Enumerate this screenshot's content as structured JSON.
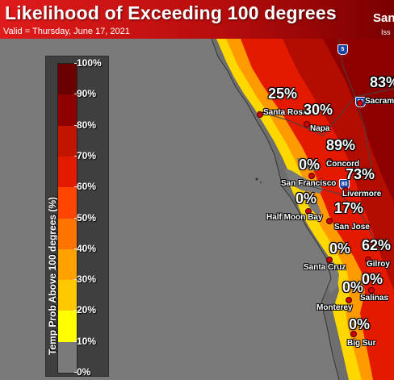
{
  "header": {
    "title": "Likelihood of Exceeding 100 degrees",
    "subtitle": "Valid = Thursday, June 17, 2021",
    "corner_top": "San",
    "corner_bottom": "Iss"
  },
  "legend": {
    "axis_title": "Temp Prob Above 100 degrees (%)",
    "ticks": [
      "100%",
      "90%",
      "80%",
      "70%",
      "60%",
      "50%",
      "40%",
      "30%",
      "20%",
      "10%",
      "0%"
    ],
    "bands": [
      {
        "range": "90-100%",
        "color": "#6b0000"
      },
      {
        "range": "80-90%",
        "color": "#8e0000"
      },
      {
        "range": "70-80%",
        "color": "#c21500"
      },
      {
        "range": "60-70%",
        "color": "#e41a00"
      },
      {
        "range": "50-60%",
        "color": "#ff4500"
      },
      {
        "range": "40-50%",
        "color": "#ff7400"
      },
      {
        "range": "30-40%",
        "color": "#ffa200"
      },
      {
        "range": "20-30%",
        "color": "#ffc800"
      },
      {
        "range": "10-20%",
        "color": "#ffff00"
      },
      {
        "range": "0-10%",
        "color": "#7a7a7a"
      }
    ]
  },
  "locations": [
    {
      "id": "santa-rosa",
      "city": "Santa Rosa",
      "pct": "25%"
    },
    {
      "id": "napa",
      "city": "Napa",
      "pct": "30%"
    },
    {
      "id": "sacramento",
      "city": "Sacram",
      "pct": "83%"
    },
    {
      "id": "concord",
      "city": "Concord",
      "pct": "89%"
    },
    {
      "id": "san-francisco",
      "city": "San Francisco",
      "pct": "0%"
    },
    {
      "id": "livermore",
      "city": "Livermore",
      "pct": "73%"
    },
    {
      "id": "half-moon-bay",
      "city": "Half Moon Bay",
      "pct": "0%"
    },
    {
      "id": "san-jose",
      "city": "San Jose",
      "pct": "17%"
    },
    {
      "id": "santa-cruz",
      "city": "Santa Cruz",
      "pct": "0%"
    },
    {
      "id": "gilroy",
      "city": "Gilroy",
      "pct": "62%"
    },
    {
      "id": "salinas",
      "city": "Salinas",
      "pct": "0%"
    },
    {
      "id": "monterey",
      "city": "Monterey",
      "pct": "0%"
    },
    {
      "id": "big-sur",
      "city": "Big Sur",
      "pct": "0%"
    }
  ],
  "highways": [
    "5",
    "80",
    "80"
  ]
}
